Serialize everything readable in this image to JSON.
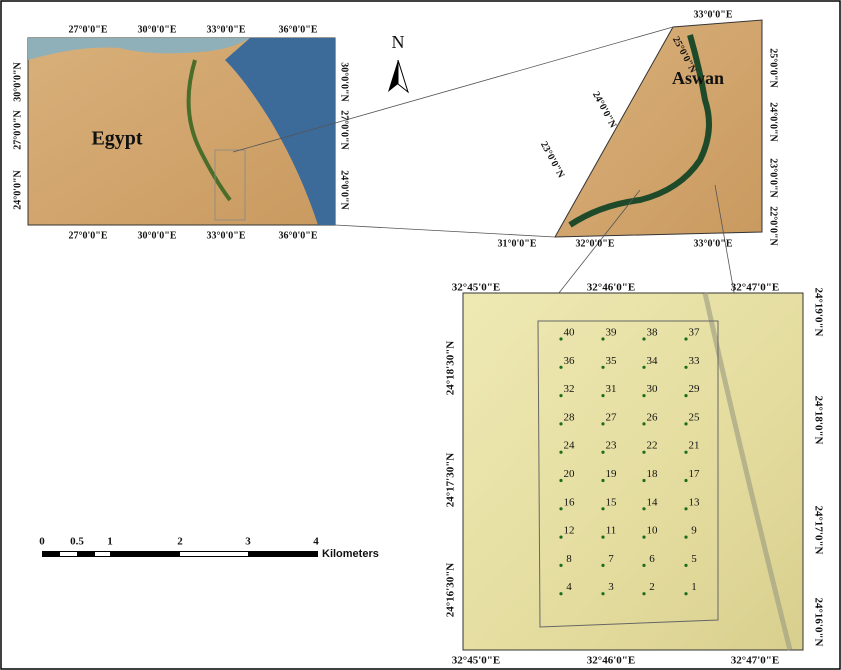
{
  "egypt_map": {
    "label": "Egypt",
    "top_ticks": [
      "27°0'0\"E",
      "30°0'0\"E",
      "33°0'0\"E",
      "36°0'0\"E"
    ],
    "bottom_ticks": [
      "27°0'0\"E",
      "30°0'0\"E",
      "33°0'0\"E",
      "36°0'0\"E"
    ],
    "left_ticks": [
      "30°0'0\"N",
      "27°0'0\"N",
      "24°0'0\"N"
    ],
    "right_ticks": [
      "30°0'0\"N",
      "27°0'0\"N",
      "24°0'0\"N"
    ]
  },
  "north_arrow": "N",
  "aswan_map": {
    "label": "Aswan",
    "top_ticks": [
      "33°0'0\"E"
    ],
    "left_ticks": [
      "25°0'0\"N",
      "24°0'0\"N",
      "23°0'0\"N"
    ],
    "right_ticks": [
      "25°0'0\"N",
      "24°0'0\"N",
      "23°0'0\"N",
      "22°0'0\"N"
    ],
    "bottom_ticks": [
      "31°0'0\"E",
      "32°0'0\"E",
      "33°0'0\"E"
    ]
  },
  "study_area": {
    "top_ticks": [
      "32°45'0\"E",
      "32°46'0\"E",
      "32°47'0\"E"
    ],
    "bottom_ticks": [
      "32°45'0\"E",
      "32°46'0\"E",
      "32°47'0\"E"
    ],
    "left_ticks": [
      "24°18'30\"N",
      "24°17'30\"N",
      "24°16'30\"N"
    ],
    "right_ticks": [
      "24°19'0\"N",
      "24°18'0\"N",
      "24°17'0\"N",
      "24°16'0\"N"
    ],
    "points": [
      [
        "40",
        "39",
        "38",
        "37"
      ],
      [
        "36",
        "35",
        "34",
        "33"
      ],
      [
        "32",
        "31",
        "30",
        "29"
      ],
      [
        "28",
        "27",
        "26",
        "25"
      ],
      [
        "24",
        "23",
        "22",
        "21"
      ],
      [
        "20",
        "19",
        "18",
        "17"
      ],
      [
        "16",
        "15",
        "14",
        "13"
      ],
      [
        "12",
        "11",
        "10",
        "9"
      ],
      [
        "8",
        "7",
        "6",
        "5"
      ],
      [
        "4",
        "3",
        "2",
        "1"
      ]
    ]
  },
  "scale_bar": {
    "labels": [
      "0",
      "0.5",
      "1",
      "2",
      "3",
      "4"
    ],
    "unit": "Kilometers"
  }
}
